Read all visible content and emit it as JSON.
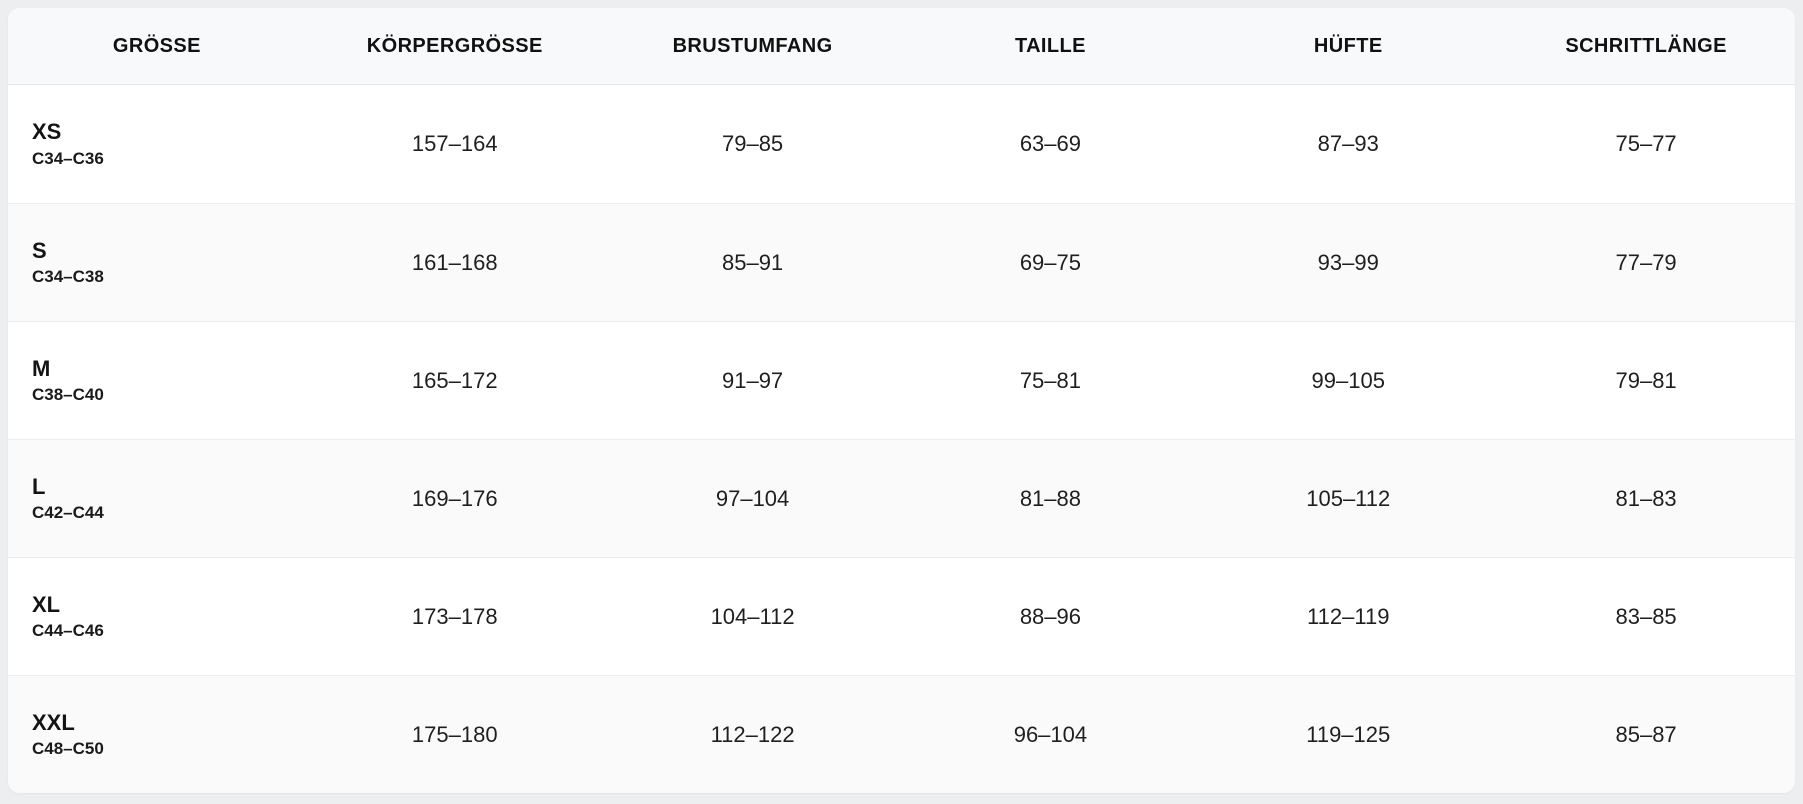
{
  "colors": {
    "page_background": "#edeef0",
    "card_background": "#ffffff",
    "header_background": "#f8f9fa",
    "stripe_background": "#fafafa",
    "row_border": "#ecedf0",
    "header_border": "#e4e6ea",
    "text": "#1a1a1a"
  },
  "table": {
    "columns": [
      {
        "key": "groesse",
        "label": "GRÖSSE"
      },
      {
        "key": "koerpergroesse",
        "label": "KÖRPERGRÖSSE"
      },
      {
        "key": "brustumfang",
        "label": "BRUSTUMFANG"
      },
      {
        "key": "taille",
        "label": "TAILLE"
      },
      {
        "key": "huefte",
        "label": "HÜFTE"
      },
      {
        "key": "schrittlaenge",
        "label": "SCHRITTLÄNGE"
      }
    ],
    "rows": [
      {
        "size": "XS",
        "code": "C34–C36",
        "values": [
          "157–164",
          "79–85",
          "63–69",
          "87–93",
          "75–77"
        ]
      },
      {
        "size": "S",
        "code": "C34–C38",
        "values": [
          "161–168",
          "85–91",
          "69–75",
          "93–99",
          "77–79"
        ]
      },
      {
        "size": "M",
        "code": "C38–C40",
        "values": [
          "165–172",
          "91–97",
          "75–81",
          "99–105",
          "79–81"
        ]
      },
      {
        "size": "L",
        "code": "C42–C44",
        "values": [
          "169–176",
          "97–104",
          "81–88",
          "105–112",
          "81–83"
        ]
      },
      {
        "size": "XL",
        "code": "C44–C46",
        "values": [
          "173–178",
          "104–112",
          "88–96",
          "112–119",
          "83–85"
        ]
      },
      {
        "size": "XXL",
        "code": "C48–C50",
        "values": [
          "175–180",
          "112–122",
          "96–104",
          "119–125",
          "85–87"
        ]
      }
    ]
  },
  "chart_data": {
    "type": "table",
    "title": "",
    "categories": [
      "GRÖSSE",
      "KÖRPERGRÖSSE",
      "BRUSTUMFANG",
      "TAILLE",
      "HÜFTE",
      "SCHRITTLÄNGE"
    ],
    "rows": [
      [
        "XS C34–C36",
        "157–164",
        "79–85",
        "63–69",
        "87–93",
        "75–77"
      ],
      [
        "S C34–C38",
        "161–168",
        "85–91",
        "69–75",
        "93–99",
        "77–79"
      ],
      [
        "M C38–C40",
        "165–172",
        "91–97",
        "75–81",
        "99–105",
        "79–81"
      ],
      [
        "L C42–C44",
        "169–176",
        "97–104",
        "81–88",
        "105–112",
        "81–83"
      ],
      [
        "XL C44–C46",
        "173–178",
        "104–112",
        "88–96",
        "112–119",
        "83–85"
      ],
      [
        "XXL C48–C50",
        "175–180",
        "112–122",
        "96–104",
        "119–125",
        "85–87"
      ]
    ]
  }
}
